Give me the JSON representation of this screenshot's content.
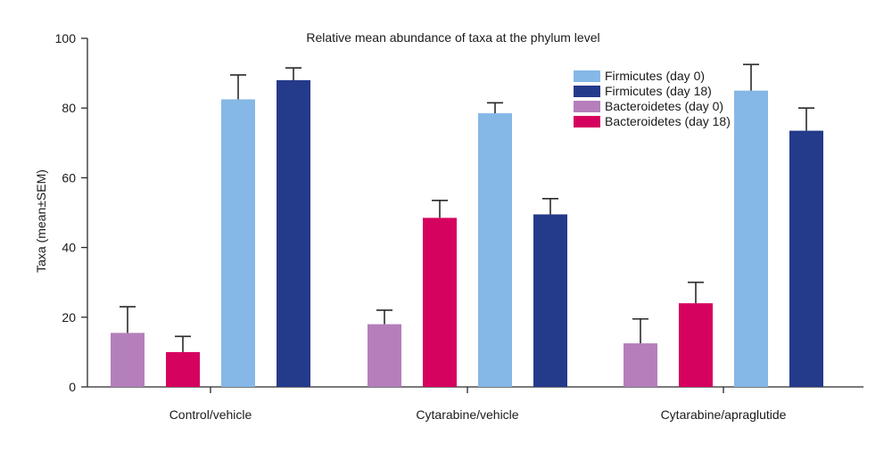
{
  "chart_data": {
    "type": "bar",
    "title": "Relative mean abundance of taxa at the phylum level",
    "xlabel": "",
    "ylabel": "Taxa (mean±SEM)",
    "ylim": [
      0,
      100
    ],
    "yticks": [
      0,
      20,
      40,
      60,
      80,
      100
    ],
    "grid": false,
    "legend_position": "top-right",
    "categories": [
      "Control/vehicle",
      "Cytarabine/vehicle",
      "Cytarabine/apraglutide"
    ],
    "bar_order": [
      "Bacteroidetes (day 0)",
      "Bacteroidetes (day 18)",
      "Firmicutes (day 0)",
      "Firmicutes (day 18)"
    ],
    "legend_order": [
      "Firmicutes (day 0)",
      "Firmicutes (day 18)",
      "Bacteroidetes (day 0)",
      "Bacteroidetes (day 18)"
    ],
    "series": [
      {
        "name": "Firmicutes (day 0)",
        "color": "#85b8e6",
        "values": [
          82.5,
          78.5,
          85
        ],
        "errors": [
          7,
          3,
          7.5
        ]
      },
      {
        "name": "Firmicutes (day 18)",
        "color": "#243a8a",
        "values": [
          88,
          49.5,
          73.5
        ],
        "errors": [
          3.5,
          4.5,
          6.5
        ]
      },
      {
        "name": "Bacteroidetes (day 0)",
        "color": "#b47fba",
        "values": [
          15.5,
          18,
          12.5
        ],
        "errors": [
          7.5,
          4,
          7
        ]
      },
      {
        "name": "Bacteroidetes (day 18)",
        "color": "#d6025f",
        "values": [
          10,
          48.5,
          24
        ],
        "errors": [
          4.5,
          5,
          6
        ]
      }
    ]
  }
}
